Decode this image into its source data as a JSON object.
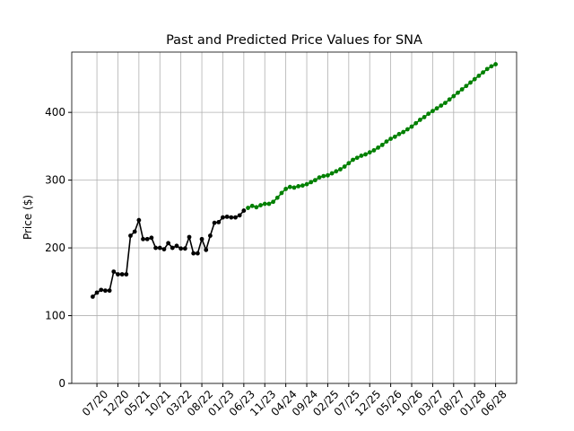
{
  "chart_data": {
    "type": "line",
    "title": "Past and Predicted Price Values for SNA",
    "ylabel": "Price ($)",
    "series": [
      {
        "color": "#000000",
        "x": [
          "06/20",
          "07/20",
          "08/20",
          "09/20",
          "10/20",
          "11/20",
          "12/20",
          "01/21",
          "02/21",
          "03/21",
          "04/21",
          "05/21",
          "06/21",
          "07/21",
          "08/21",
          "09/21",
          "10/21",
          "11/21",
          "12/21",
          "01/22",
          "02/22",
          "03/22",
          "04/22",
          "05/22",
          "06/22",
          "07/22",
          "08/22",
          "09/22",
          "10/22",
          "11/22",
          "12/22",
          "01/23",
          "02/23",
          "03/23",
          "04/23",
          "05/23",
          "06/23"
        ],
        "values": [
          128,
          134,
          138,
          137,
          137,
          165,
          161,
          161,
          161,
          218,
          224,
          241,
          213,
          213,
          215,
          200,
          200,
          198,
          207,
          200,
          203,
          199,
          199,
          216,
          192,
          192,
          213,
          197,
          218,
          237,
          238,
          245,
          246,
          245,
          245,
          248,
          255
        ]
      },
      {
        "color": "#008000",
        "x": [
          "07/23",
          "08/23",
          "09/23",
          "10/23",
          "11/23",
          "12/23",
          "01/24",
          "02/24",
          "03/24",
          "04/24",
          "05/24",
          "06/24",
          "07/24",
          "08/24",
          "09/24",
          "10/24",
          "11/24",
          "12/24",
          "01/25",
          "02/25",
          "03/25",
          "04/25",
          "05/25",
          "06/25",
          "07/25",
          "08/25",
          "09/25",
          "10/25",
          "11/25",
          "12/25",
          "01/26",
          "02/26",
          "03/26",
          "04/26",
          "05/26",
          "06/26",
          "07/26",
          "08/26",
          "09/26",
          "10/26",
          "11/26",
          "12/26",
          "01/27",
          "02/27",
          "03/27",
          "04/27",
          "05/27",
          "06/27",
          "07/27",
          "08/27",
          "09/27",
          "10/27",
          "11/27",
          "12/27",
          "01/28",
          "02/28",
          "03/28",
          "04/28",
          "05/28",
          "06/28"
        ],
        "values": [
          259,
          262,
          260,
          263,
          265,
          265,
          268,
          274,
          281,
          287,
          290,
          289,
          291,
          292,
          294,
          297,
          300,
          304,
          306,
          307,
          310,
          313,
          316,
          320,
          325,
          330,
          333,
          336,
          338,
          341,
          344,
          348,
          352,
          357,
          361,
          364,
          368,
          371,
          375,
          379,
          384,
          389,
          393,
          398,
          402,
          406,
          410,
          414,
          419,
          424,
          429,
          434,
          439,
          444,
          449,
          454,
          459,
          464,
          468,
          471
        ]
      }
    ],
    "xlim": [
      "01/20",
      "11/28"
    ],
    "xticks": [
      "07/20",
      "12/20",
      "05/21",
      "10/21",
      "03/22",
      "08/22",
      "01/23",
      "06/23",
      "11/23",
      "04/24",
      "09/24",
      "02/25",
      "07/25",
      "12/25",
      "05/26",
      "10/26",
      "03/27",
      "08/27",
      "01/28",
      "06/28"
    ],
    "ylim": [
      0,
      489
    ],
    "yticks": [
      0,
      100,
      200,
      300,
      400
    ],
    "grid": true
  }
}
